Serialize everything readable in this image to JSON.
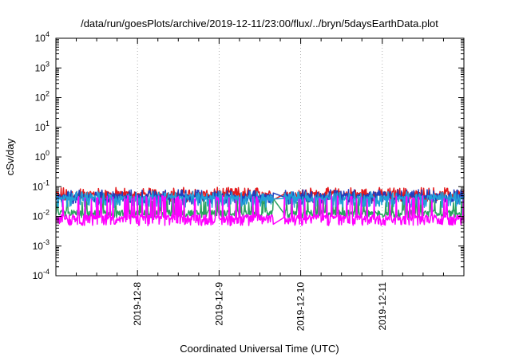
{
  "chart_data": {
    "type": "line",
    "title": "/data/run/goesPlots/archive/2019-12-11/23:00/flux/../bryn/5daysEarthData.plot",
    "xlabel": "Coordinated Universal Time (UTC)",
    "ylabel": "cSv/day",
    "yscale": "log",
    "ylim": [
      0.0001,
      10000
    ],
    "xlim": [
      "2019-12-07T00:00",
      "2019-12-12T00:00"
    ],
    "y_ticks": [
      {
        "base": "10",
        "exp": "-4"
      },
      {
        "base": "10",
        "exp": "-3"
      },
      {
        "base": "10",
        "exp": "-2"
      },
      {
        "base": "10",
        "exp": "-1"
      },
      {
        "base": "10",
        "exp": "0"
      },
      {
        "base": "10",
        "exp": "1"
      },
      {
        "base": "10",
        "exp": "2"
      },
      {
        "base": "10",
        "exp": "3"
      },
      {
        "base": "10",
        "exp": "4"
      }
    ],
    "x_ticks": [
      "2019-12-8",
      "2019-12-9",
      "2019-12-10",
      "2019-12-11"
    ],
    "grid": true,
    "gap": [
      "2019-12-09T16:00",
      "2019-12-09T19:00"
    ],
    "series": [
      {
        "color": "#e41a1c",
        "base": 0.055,
        "spike": 0.095,
        "dip": 0.04
      },
      {
        "color": "#1f3fbf",
        "base": 0.045,
        "spike": 0.08,
        "dip": 0.03
      },
      {
        "color": "#2ca25f",
        "base": 0.013,
        "spike": 0.04,
        "dip": 0.011
      },
      {
        "color": "#22a0d8",
        "base": 0.04,
        "spike": 0.07,
        "dip": 0.025
      },
      {
        "color": "#ff00ff",
        "base": 0.009,
        "spike": 0.05,
        "dip": 0.006
      }
    ]
  }
}
